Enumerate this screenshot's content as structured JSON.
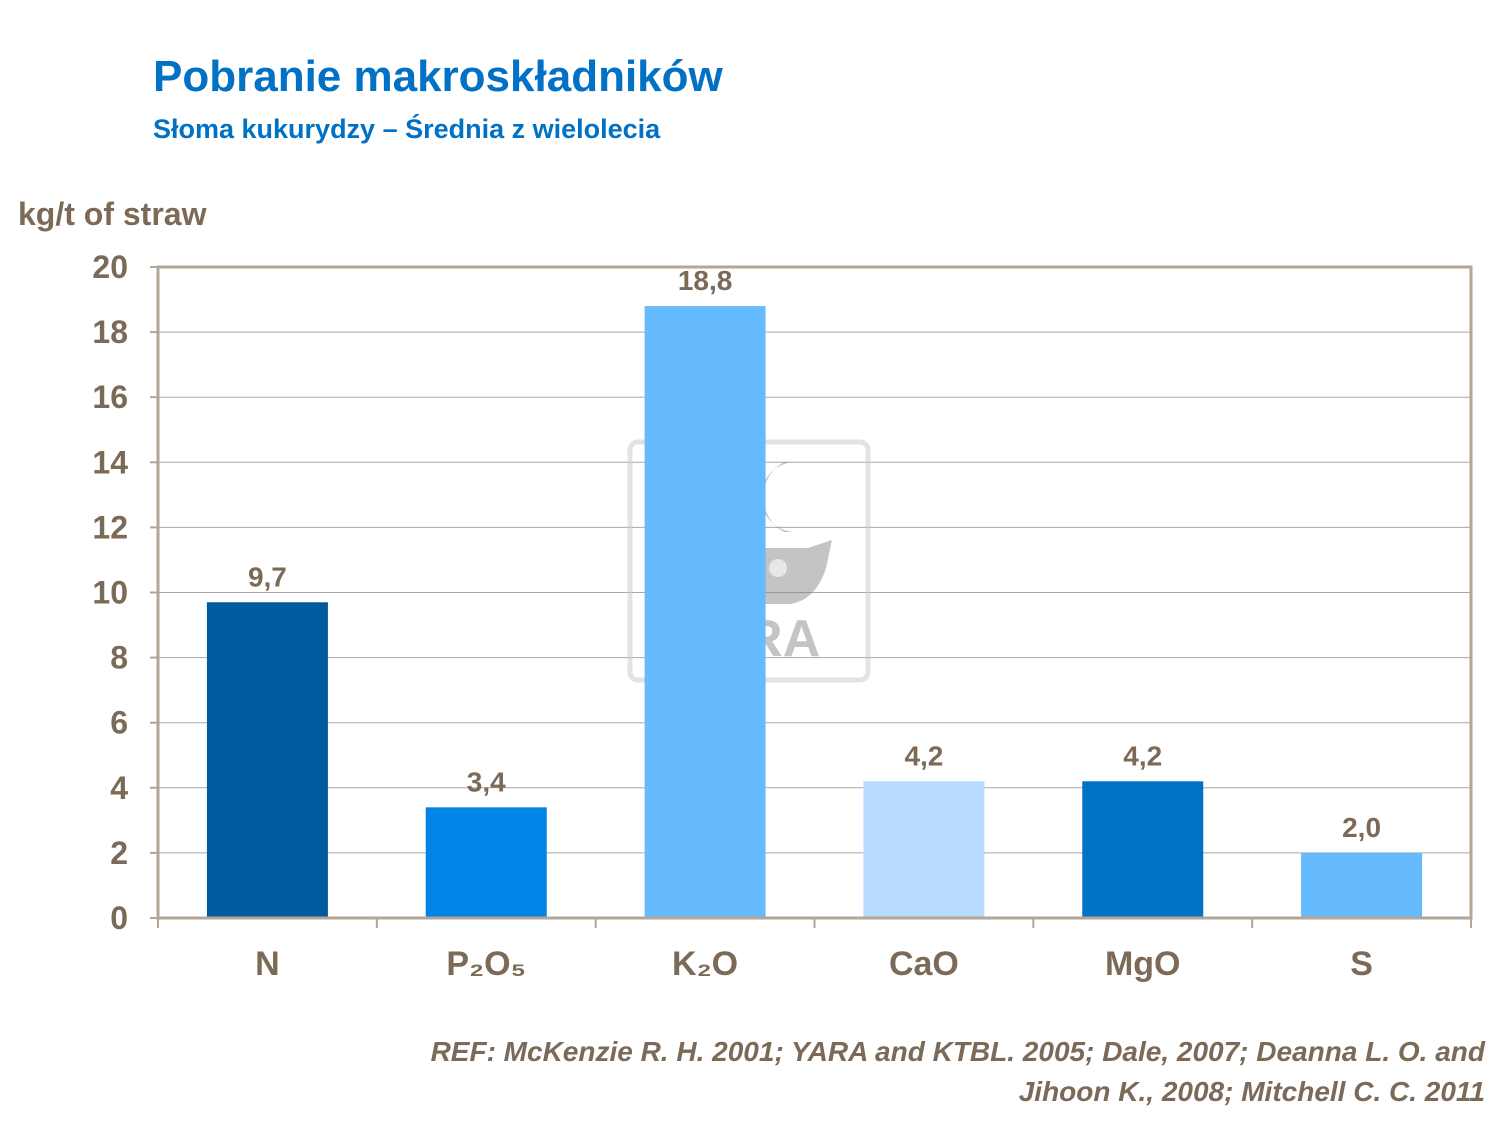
{
  "title": "Pobranie makroskładników",
  "subtitle": "Słoma kukurydzy – Średnia z wielolecia",
  "reference": {
    "line1": "REF: McKenzie R. H. 2001; YARA and KTBL. 2005; Dale, 2007; Deanna L. O. and",
    "line2": "Jihoon K.,  2008; Mitchell C. C. 2011"
  },
  "watermark": {
    "icon": "yara-logo-icon",
    "text": "YARA"
  },
  "chart_data": {
    "type": "bar",
    "title": "",
    "xlabel": "",
    "ylabel": "kg/t of straw",
    "categories": [
      "N",
      "P₂O₅",
      "K₂O",
      "CaO",
      "MgO",
      "S"
    ],
    "values": [
      9.7,
      3.4,
      18.8,
      4.2,
      4.2,
      2.0
    ],
    "data_labels": [
      "9,7",
      "3,4",
      "18,8",
      "4,2",
      "4,2",
      "2,0"
    ],
    "colors": [
      "#005a9e",
      "#0084e6",
      "#66bbff",
      "#b8dcff",
      "#0073c4",
      "#66bbff"
    ],
    "ylim": [
      0,
      20
    ],
    "yticks": [
      0,
      2,
      4,
      6,
      8,
      10,
      12,
      14,
      16,
      18,
      20
    ],
    "grid": true,
    "legend": "none"
  }
}
